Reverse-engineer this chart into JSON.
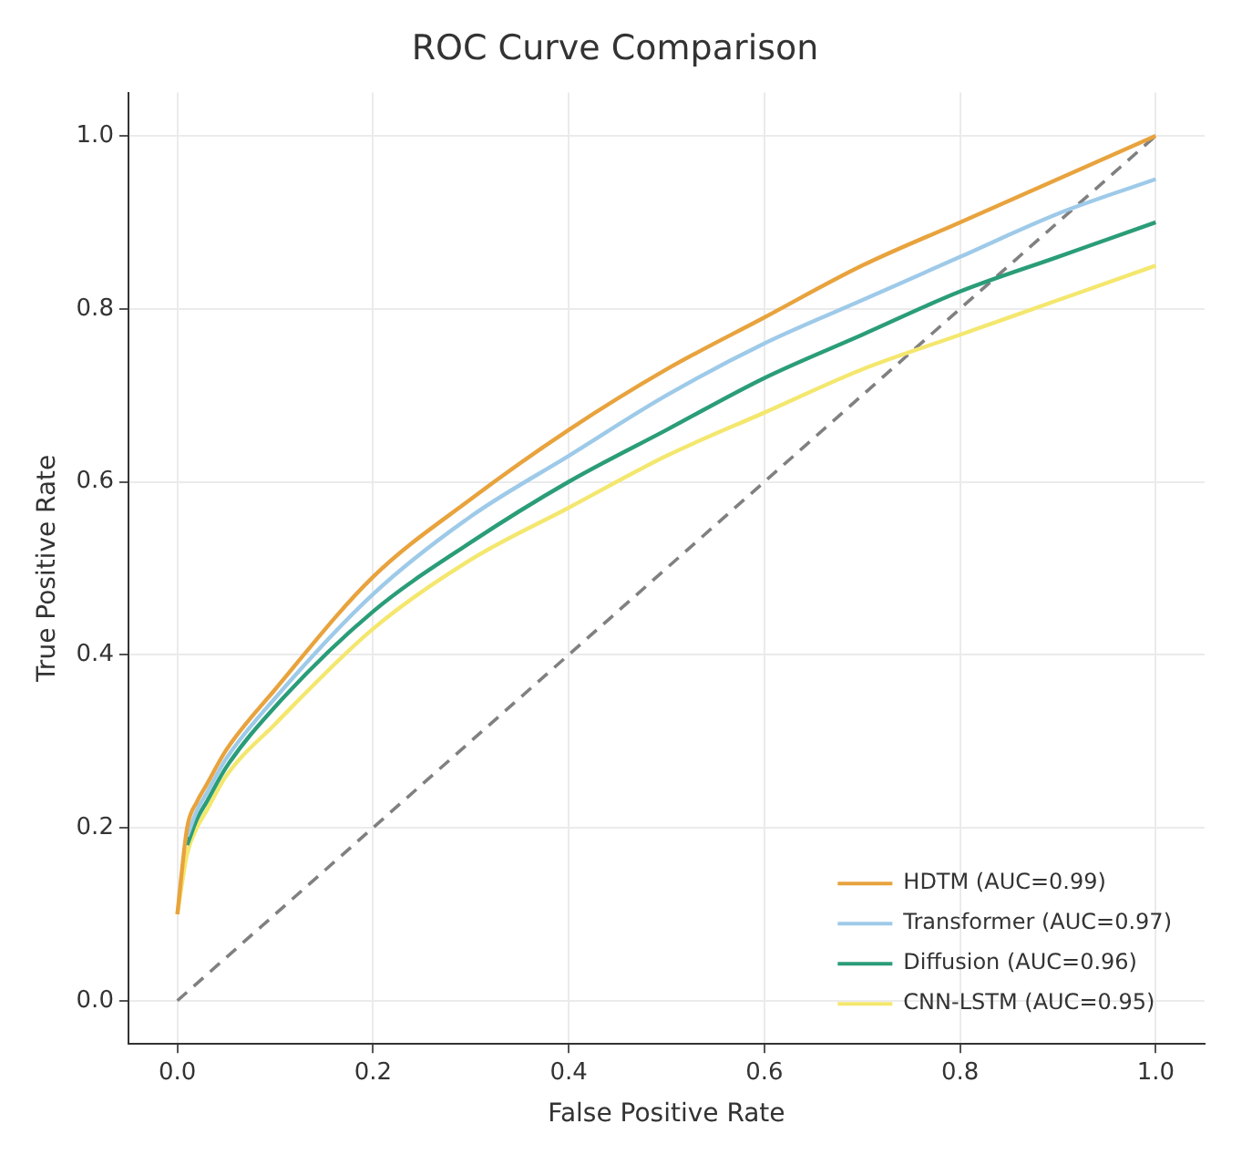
{
  "chart_data": {
    "type": "line",
    "title": "ROC Curve Comparison",
    "xlabel": "False Positive Rate",
    "ylabel": "True Positive Rate",
    "xlim": [
      -0.05,
      1.05
    ],
    "ylim": [
      -0.05,
      1.05
    ],
    "xticks": [
      {
        "value": 0,
        "label": "0.0"
      },
      {
        "value": 0.2,
        "label": "0.2"
      },
      {
        "value": 0.4,
        "label": "0.4"
      },
      {
        "value": 0.6,
        "label": "0.6"
      },
      {
        "value": 0.8,
        "label": "0.8"
      },
      {
        "value": 1,
        "label": "1.0"
      }
    ],
    "yticks": [
      {
        "value": 0,
        "label": "0.0"
      },
      {
        "value": 0.2,
        "label": "0.2"
      },
      {
        "value": 0.4,
        "label": "0.4"
      },
      {
        "value": 0.6,
        "label": "0.6"
      },
      {
        "value": 0.8,
        "label": "0.8"
      },
      {
        "value": 1,
        "label": "1.0"
      }
    ],
    "grid": true,
    "legend": "bottom right",
    "marker": "none",
    "line_style": "solid",
    "series": [
      {
        "name": "HDTM (AUC=0.99)",
        "color": "#e8a33d",
        "x": [
          0,
          0.01,
          0.02,
          0.03,
          0.05,
          0.1,
          0.2,
          0.3,
          0.4,
          0.5,
          0.6,
          0.7,
          0.8,
          0.9,
          1
        ],
        "values": [
          0.1,
          0.2,
          0.23,
          0.25,
          0.29,
          0.36,
          0.49,
          0.58,
          0.66,
          0.73,
          0.79,
          0.85,
          0.9,
          0.95,
          1
        ]
      },
      {
        "name": "Transformer (AUC=0.97)",
        "color": "#9ecae9",
        "x": [
          0.01,
          0.02,
          0.03,
          0.05,
          0.1,
          0.2,
          0.3,
          0.4,
          0.5,
          0.6,
          0.7,
          0.8,
          0.9,
          1
        ],
        "values": [
          0.19,
          0.22,
          0.24,
          0.28,
          0.35,
          0.47,
          0.56,
          0.63,
          0.7,
          0.76,
          0.81,
          0.86,
          0.91,
          0.95
        ]
      },
      {
        "name": "Diffusion (AUC=0.96)",
        "color": "#2a9d78",
        "x": [
          0.01,
          0.02,
          0.03,
          0.05,
          0.1,
          0.2,
          0.3,
          0.4,
          0.5,
          0.6,
          0.7,
          0.8,
          0.9,
          1
        ],
        "values": [
          0.18,
          0.21,
          0.23,
          0.27,
          0.34,
          0.45,
          0.53,
          0.6,
          0.66,
          0.72,
          0.77,
          0.82,
          0.86,
          0.9
        ]
      },
      {
        "name": "CNN-LSTM (AUC=0.95)",
        "color": "#f4e76e",
        "x": [
          0,
          0.01,
          0.02,
          0.03,
          0.05,
          0.1,
          0.2,
          0.3,
          0.4,
          0.5,
          0.6,
          0.7,
          0.8,
          0.9,
          1
        ],
        "values": [
          0.1,
          0.17,
          0.2,
          0.22,
          0.26,
          0.32,
          0.43,
          0.51,
          0.57,
          0.63,
          0.68,
          0.73,
          0.77,
          0.81,
          0.85
        ]
      },
      {
        "color": "#808080",
        "line_style": "dashed",
        "x": [
          0,
          1
        ],
        "values": [
          0,
          1
        ]
      }
    ]
  }
}
